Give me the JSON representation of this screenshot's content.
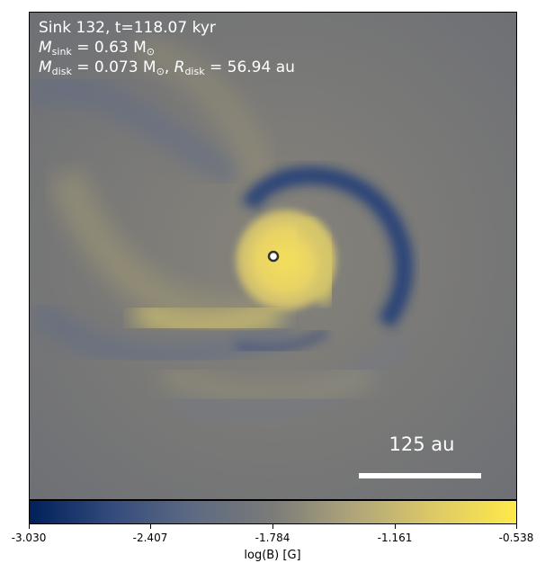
{
  "sink_title": "Sink 132, t=118.07 kyr",
  "mass_sink": {
    "symbol": "M",
    "subscript": "sink",
    "equals": " = 0.63 M",
    "sun": "⊙"
  },
  "mass_disk": {
    "symbol": "M",
    "subscript": "disk",
    "equals": " = 0.073 M",
    "sun": "⊙",
    "sep": ", ",
    "r_symbol": "R",
    "r_subscript": "disk",
    "r_equals": " = 56.94 au"
  },
  "scale_label": "125 au",
  "colorbar": {
    "label": "log(B) [G]",
    "ticks": [
      "-3.030",
      "-2.407",
      "-1.784",
      "-1.161",
      "-0.538"
    ],
    "colors": [
      "#00205a",
      "#334a7c",
      "#5d6a82",
      "#7b7b79",
      "#b0a57a",
      "#ddca66",
      "#ffe94a"
    ]
  }
}
